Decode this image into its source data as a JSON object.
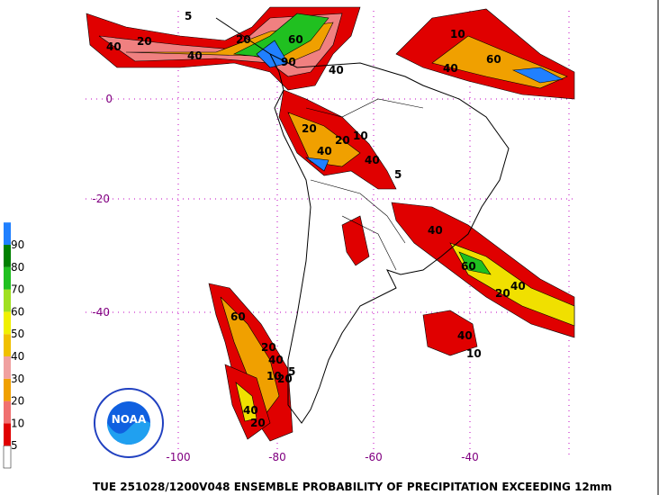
{
  "map": {
    "lon_labels": [
      "-100",
      "-80",
      "-60",
      "-40"
    ],
    "lat_labels": [
      "0",
      "-20",
      "-40"
    ],
    "contour_labels": [
      "40",
      "20",
      "40",
      "60",
      "20",
      "40",
      "10",
      "5",
      "60",
      "40",
      "20",
      "40",
      "10",
      "40",
      "20",
      "5",
      "90",
      "40",
      "60",
      "20",
      "40",
      "60",
      "20",
      "40",
      "20",
      "10",
      "20",
      "40",
      "5",
      "40",
      "10"
    ],
    "logo_text": "NOAA"
  },
  "legend": {
    "levels": [
      "5",
      "10",
      "20",
      "30",
      "40",
      "50",
      "60",
      "70",
      "80",
      "90"
    ]
  },
  "footer": {
    "title": "TUE 251028/1200V048  ENSEMBLE PROBABILITY OF PRECIPITATION EXCEEDING 12mm"
  }
}
